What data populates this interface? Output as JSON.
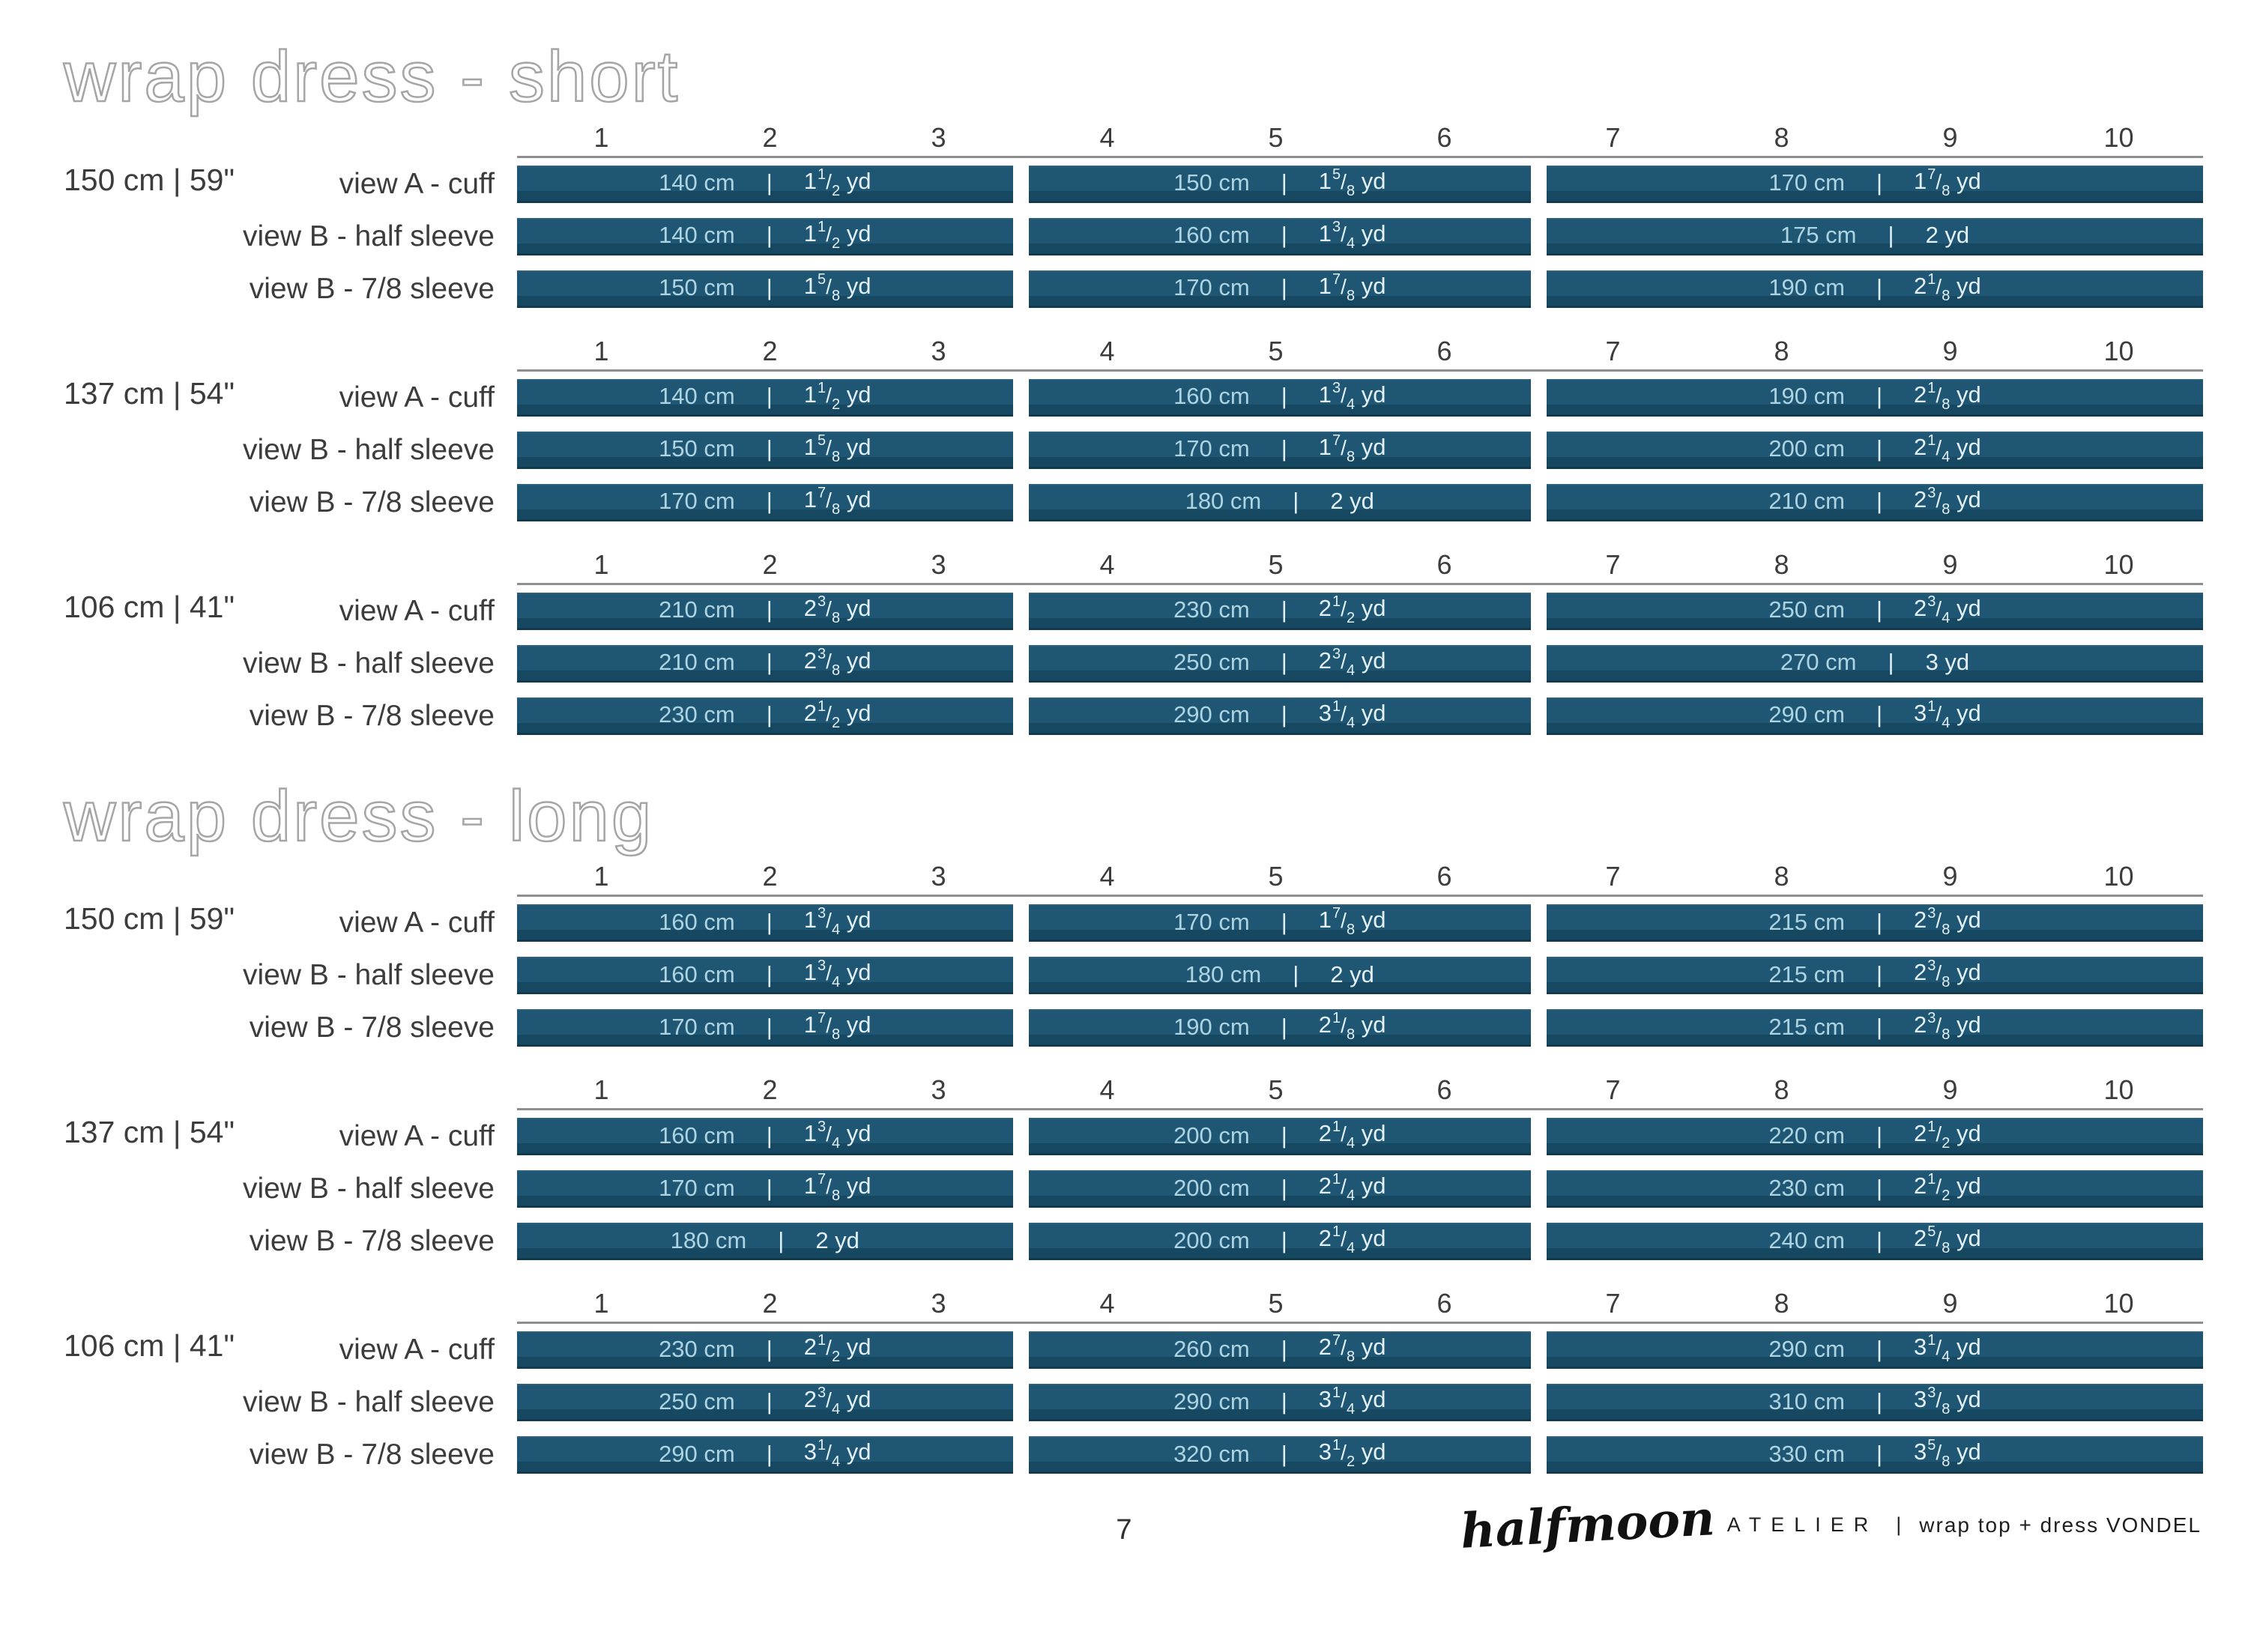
{
  "separator": "|",
  "size_ruler": [
    "1",
    "2",
    "3",
    "4",
    "5",
    "6",
    "7",
    "8",
    "9",
    "10"
  ],
  "colors": {
    "bar_fill": "#1f5673",
    "bar_fill_shadow": "#12394e",
    "cm_text": "#aed4e2",
    "yd_text": "#e3f1f7",
    "label_text": "#3c3c3c",
    "ruler_line": "#8e8e8e",
    "title_outline": "#a5a5a5"
  },
  "sections": [
    {
      "title": "wrap dress - short",
      "groups": [
        {
          "fabric_width": "150 cm | 59\"",
          "rows": [
            {
              "label": "view A - cuff",
              "bars": [
                {
                  "size_range": "1-3",
                  "cm": "140 cm",
                  "yd": "1 1/2 yd"
                },
                {
                  "size_range": "4-6",
                  "cm": "150 cm",
                  "yd": "1 5/8 yd"
                },
                {
                  "size_range": "7-10",
                  "cm": "170 cm",
                  "yd": "1 7/8 yd"
                }
              ]
            },
            {
              "label": "view B - half sleeve",
              "bars": [
                {
                  "size_range": "1-3",
                  "cm": "140 cm",
                  "yd": "1 1/2 yd"
                },
                {
                  "size_range": "4-6",
                  "cm": "160 cm",
                  "yd": "1 3/4 yd"
                },
                {
                  "size_range": "7-10",
                  "cm": "175 cm",
                  "yd": "2 yd"
                }
              ]
            },
            {
              "label": "view B - 7/8 sleeve",
              "bars": [
                {
                  "size_range": "1-3",
                  "cm": "150 cm",
                  "yd": "1 5/8 yd"
                },
                {
                  "size_range": "4-6",
                  "cm": "170 cm",
                  "yd": "1 7/8 yd"
                },
                {
                  "size_range": "7-10",
                  "cm": "190 cm",
                  "yd": "2 1/8 yd"
                }
              ]
            }
          ]
        },
        {
          "fabric_width": "137 cm | 54\"",
          "rows": [
            {
              "label": "view A - cuff",
              "bars": [
                {
                  "size_range": "1-3",
                  "cm": "140 cm",
                  "yd": "1 1/2 yd"
                },
                {
                  "size_range": "4-6",
                  "cm": "160 cm",
                  "yd": "1 3/4 yd"
                },
                {
                  "size_range": "7-10",
                  "cm": "190 cm",
                  "yd": "2 1/8 yd"
                }
              ]
            },
            {
              "label": "view B - half sleeve",
              "bars": [
                {
                  "size_range": "1-3",
                  "cm": "150 cm",
                  "yd": "1 5/8 yd"
                },
                {
                  "size_range": "4-6",
                  "cm": "170 cm",
                  "yd": "1 7/8 yd"
                },
                {
                  "size_range": "7-10",
                  "cm": "200 cm",
                  "yd": "2 1/4 yd"
                }
              ]
            },
            {
              "label": "view B - 7/8 sleeve",
              "bars": [
                {
                  "size_range": "1-3",
                  "cm": "170 cm",
                  "yd": "1 7/8 yd"
                },
                {
                  "size_range": "4-6",
                  "cm": "180 cm",
                  "yd": "2 yd"
                },
                {
                  "size_range": "7-10",
                  "cm": "210 cm",
                  "yd": "2 3/8 yd"
                }
              ]
            }
          ]
        },
        {
          "fabric_width": "106 cm | 41\"",
          "rows": [
            {
              "label": "view A - cuff",
              "bars": [
                {
                  "size_range": "1-3",
                  "cm": "210 cm",
                  "yd": "2 3/8 yd"
                },
                {
                  "size_range": "4-6",
                  "cm": "230 cm",
                  "yd": "2 1/2 yd"
                },
                {
                  "size_range": "7-10",
                  "cm": "250 cm",
                  "yd": "2 3/4 yd"
                }
              ]
            },
            {
              "label": "view B - half sleeve",
              "bars": [
                {
                  "size_range": "1-3",
                  "cm": "210 cm",
                  "yd": "2 3/8 yd"
                },
                {
                  "size_range": "4-6",
                  "cm": "250 cm",
                  "yd": "2 3/4 yd"
                },
                {
                  "size_range": "7-10",
                  "cm": "270 cm",
                  "yd": "3 yd"
                }
              ]
            },
            {
              "label": "view B - 7/8 sleeve",
              "bars": [
                {
                  "size_range": "1-3",
                  "cm": "230 cm",
                  "yd": "2 1/2 yd"
                },
                {
                  "size_range": "4-6",
                  "cm": "290 cm",
                  "yd": "3 1/4 yd"
                },
                {
                  "size_range": "7-10",
                  "cm": "290 cm",
                  "yd": "3 1/4 yd"
                }
              ]
            }
          ]
        }
      ]
    },
    {
      "title": "wrap dress - long",
      "groups": [
        {
          "fabric_width": "150 cm | 59\"",
          "rows": [
            {
              "label": "view A - cuff",
              "bars": [
                {
                  "size_range": "1-3",
                  "cm": "160 cm",
                  "yd": "1 3/4 yd"
                },
                {
                  "size_range": "4-6",
                  "cm": "170 cm",
                  "yd": "1 7/8 yd"
                },
                {
                  "size_range": "7-10",
                  "cm": "215 cm",
                  "yd": "2 3/8 yd"
                }
              ]
            },
            {
              "label": "view B - half sleeve",
              "bars": [
                {
                  "size_range": "1-3",
                  "cm": "160 cm",
                  "yd": "1 3/4 yd"
                },
                {
                  "size_range": "4-6",
                  "cm": "180 cm",
                  "yd": "2 yd"
                },
                {
                  "size_range": "7-10",
                  "cm": "215 cm",
                  "yd": "2 3/8 yd"
                }
              ]
            },
            {
              "label": "view B - 7/8 sleeve",
              "bars": [
                {
                  "size_range": "1-3",
                  "cm": "170 cm",
                  "yd": "1 7/8 yd"
                },
                {
                  "size_range": "4-6",
                  "cm": "190 cm",
                  "yd": "2 1/8 yd"
                },
                {
                  "size_range": "7-10",
                  "cm": "215 cm",
                  "yd": "2 3/8 yd"
                }
              ]
            }
          ]
        },
        {
          "fabric_width": "137 cm | 54\"",
          "rows": [
            {
              "label": "view A - cuff",
              "bars": [
                {
                  "size_range": "1-3",
                  "cm": "160 cm",
                  "yd": "1 3/4 yd"
                },
                {
                  "size_range": "4-6",
                  "cm": "200 cm",
                  "yd": "2 1/4 yd"
                },
                {
                  "size_range": "7-10",
                  "cm": "220 cm",
                  "yd": "2 1/2 yd"
                }
              ]
            },
            {
              "label": "view B - half sleeve",
              "bars": [
                {
                  "size_range": "1-3",
                  "cm": "170 cm",
                  "yd": "1 7/8 yd"
                },
                {
                  "size_range": "4-6",
                  "cm": "200 cm",
                  "yd": "2 1/4 yd"
                },
                {
                  "size_range": "7-10",
                  "cm": "230 cm",
                  "yd": "2 1/2 yd"
                }
              ]
            },
            {
              "label": "view B - 7/8 sleeve",
              "bars": [
                {
                  "size_range": "1-3",
                  "cm": "180 cm",
                  "yd": "2 yd"
                },
                {
                  "size_range": "4-6",
                  "cm": "200 cm",
                  "yd": "2 1/4 yd"
                },
                {
                  "size_range": "7-10",
                  "cm": "240 cm",
                  "yd": "2 5/8 yd"
                }
              ]
            }
          ]
        },
        {
          "fabric_width": "106 cm | 41\"",
          "rows": [
            {
              "label": "view A - cuff",
              "bars": [
                {
                  "size_range": "1-3",
                  "cm": "230 cm",
                  "yd": "2 1/2 yd"
                },
                {
                  "size_range": "4-6",
                  "cm": "260 cm",
                  "yd": "2 7/8 yd"
                },
                {
                  "size_range": "7-10",
                  "cm": "290 cm",
                  "yd": "3 1/4 yd"
                }
              ]
            },
            {
              "label": "view B - half sleeve",
              "bars": [
                {
                  "size_range": "1-3",
                  "cm": "250 cm",
                  "yd": "2 3/4 yd"
                },
                {
                  "size_range": "4-6",
                  "cm": "290 cm",
                  "yd": "3 1/4 yd"
                },
                {
                  "size_range": "7-10",
                  "cm": "310 cm",
                  "yd": "3 3/8 yd"
                }
              ]
            },
            {
              "label": "view B - 7/8 sleeve",
              "bars": [
                {
                  "size_range": "1-3",
                  "cm": "290 cm",
                  "yd": "3 1/4 yd"
                },
                {
                  "size_range": "4-6",
                  "cm": "320 cm",
                  "yd": "3 1/2 yd"
                },
                {
                  "size_range": "7-10",
                  "cm": "330 cm",
                  "yd": "3 5/8 yd"
                }
              ]
            }
          ]
        }
      ]
    }
  ],
  "page_footer": {
    "page_number": "7",
    "brand_script": "halfmoon",
    "brand_caps": "ATELIER",
    "divider": "|",
    "pattern_label": "wrap top + dress VONDEL"
  }
}
